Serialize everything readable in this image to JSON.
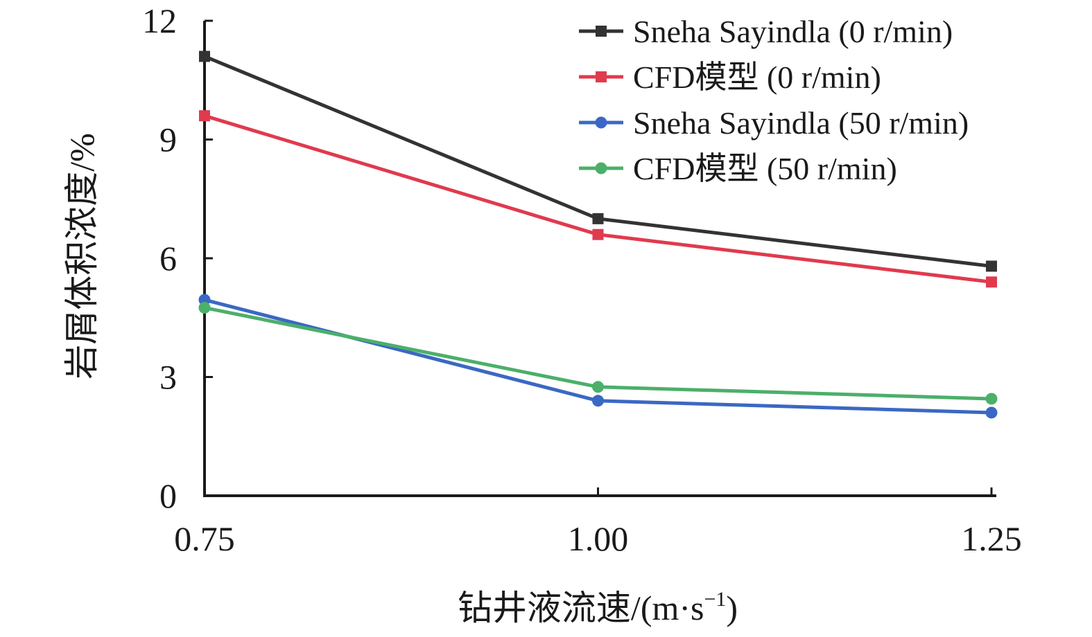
{
  "chart_data": {
    "type": "line",
    "x": [
      0.75,
      1.0,
      1.25
    ],
    "x_tick_labels": [
      "0.75",
      "1.00",
      "1.25"
    ],
    "y_ticks": [
      0,
      3,
      6,
      9,
      12
    ],
    "y_tick_labels": [
      "0",
      "3",
      "6",
      "9",
      "12"
    ],
    "xlim": [
      0.75,
      1.25
    ],
    "ylim": [
      0,
      12
    ],
    "xlabel_main": "钻井液流速/(m·s",
    "xlabel_sup": "−1",
    "xlabel_close": ")",
    "ylabel": "岩屑体积浓度/%",
    "grid": false,
    "legend_position": "top-right",
    "series": [
      {
        "name": "Sneha Sayindla (0 r/min)",
        "values": [
          11.1,
          7.0,
          5.8
        ],
        "color": "#333333",
        "marker": "square"
      },
      {
        "name": "CFD模型 (0 r/min)",
        "values": [
          9.6,
          6.6,
          5.4
        ],
        "color": "#e03a4e",
        "marker": "square"
      },
      {
        "name": "Sneha Sayindla (50 r/min)",
        "values": [
          4.95,
          2.4,
          2.1
        ],
        "color": "#3a68c4",
        "marker": "circle"
      },
      {
        "name": "CFD模型 (50 r/min)",
        "values": [
          4.75,
          2.75,
          2.45
        ],
        "color": "#4caf6a",
        "marker": "circle"
      }
    ]
  }
}
